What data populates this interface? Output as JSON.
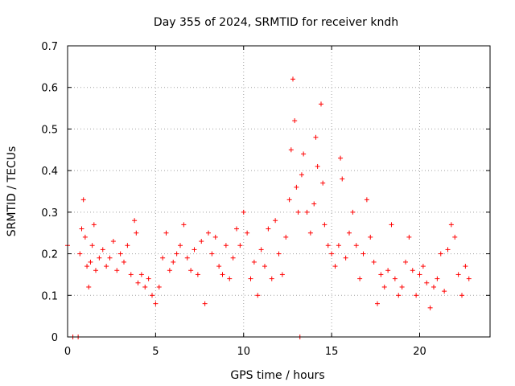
{
  "chart_data": {
    "type": "scatter",
    "title": "Day 355 of 2024, SRMTID for receiver kndh",
    "xlabel": "GPS time / hours",
    "ylabel": "SRMTID / TECUs",
    "xlim": [
      0,
      24
    ],
    "ylim": [
      0,
      0.7
    ],
    "xticks": [
      0,
      5,
      10,
      15,
      20
    ],
    "yticks": [
      0,
      0.1,
      0.2,
      0.3,
      0.4,
      0.5,
      0.6,
      0.7
    ],
    "xtick_labels": [
      "0",
      "5",
      "10",
      "15",
      "20"
    ],
    "ytick_labels": [
      "0",
      "0.1",
      "0.2",
      "0.3",
      "0.4",
      "0.5",
      "0.6",
      "0.7"
    ],
    "grid": true,
    "marker": "plus",
    "color": "#ff0000",
    "series": [
      {
        "name": "SRMTID",
        "points": [
          [
            0.0,
            0.22
          ],
          [
            0.3,
            0.0
          ],
          [
            0.6,
            0.0
          ],
          [
            0.7,
            0.2
          ],
          [
            0.8,
            0.26
          ],
          [
            0.9,
            0.33
          ],
          [
            1.0,
            0.24
          ],
          [
            1.1,
            0.17
          ],
          [
            1.2,
            0.12
          ],
          [
            1.3,
            0.18
          ],
          [
            1.4,
            0.22
          ],
          [
            1.5,
            0.27
          ],
          [
            1.6,
            0.16
          ],
          [
            1.8,
            0.19
          ],
          [
            2.0,
            0.21
          ],
          [
            2.2,
            0.17
          ],
          [
            2.4,
            0.19
          ],
          [
            2.6,
            0.23
          ],
          [
            2.8,
            0.16
          ],
          [
            3.0,
            0.2
          ],
          [
            3.2,
            0.18
          ],
          [
            3.4,
            0.22
          ],
          [
            3.6,
            0.15
          ],
          [
            3.8,
            0.28
          ],
          [
            3.9,
            0.25
          ],
          [
            4.0,
            0.13
          ],
          [
            4.2,
            0.15
          ],
          [
            4.4,
            0.12
          ],
          [
            4.6,
            0.14
          ],
          [
            4.8,
            0.1
          ],
          [
            5.0,
            0.08
          ],
          [
            5.2,
            0.12
          ],
          [
            5.4,
            0.19
          ],
          [
            5.6,
            0.25
          ],
          [
            5.8,
            0.16
          ],
          [
            6.0,
            0.18
          ],
          [
            6.2,
            0.2
          ],
          [
            6.4,
            0.22
          ],
          [
            6.6,
            0.27
          ],
          [
            6.8,
            0.19
          ],
          [
            7.0,
            0.16
          ],
          [
            7.2,
            0.21
          ],
          [
            7.4,
            0.15
          ],
          [
            7.6,
            0.23
          ],
          [
            7.8,
            0.08
          ],
          [
            8.0,
            0.25
          ],
          [
            8.2,
            0.2
          ],
          [
            8.4,
            0.24
          ],
          [
            8.6,
            0.17
          ],
          [
            8.8,
            0.15
          ],
          [
            9.0,
            0.22
          ],
          [
            9.2,
            0.14
          ],
          [
            9.4,
            0.19
          ],
          [
            9.6,
            0.26
          ],
          [
            9.8,
            0.22
          ],
          [
            10.0,
            0.3
          ],
          [
            10.2,
            0.25
          ],
          [
            10.4,
            0.14
          ],
          [
            10.6,
            0.18
          ],
          [
            10.8,
            0.1
          ],
          [
            11.0,
            0.21
          ],
          [
            11.2,
            0.17
          ],
          [
            11.4,
            0.26
          ],
          [
            11.6,
            0.14
          ],
          [
            11.8,
            0.28
          ],
          [
            12.0,
            0.2
          ],
          [
            12.2,
            0.15
          ],
          [
            12.4,
            0.24
          ],
          [
            12.6,
            0.33
          ],
          [
            12.7,
            0.45
          ],
          [
            12.8,
            0.62
          ],
          [
            12.9,
            0.52
          ],
          [
            13.0,
            0.36
          ],
          [
            13.1,
            0.3
          ],
          [
            13.2,
            0.0
          ],
          [
            13.3,
            0.39
          ],
          [
            13.4,
            0.44
          ],
          [
            13.6,
            0.3
          ],
          [
            13.8,
            0.25
          ],
          [
            14.0,
            0.32
          ],
          [
            14.1,
            0.48
          ],
          [
            14.2,
            0.41
          ],
          [
            14.4,
            0.56
          ],
          [
            14.5,
            0.37
          ],
          [
            14.6,
            0.27
          ],
          [
            14.8,
            0.22
          ],
          [
            15.0,
            0.2
          ],
          [
            15.2,
            0.17
          ],
          [
            15.4,
            0.22
          ],
          [
            15.5,
            0.43
          ],
          [
            15.6,
            0.38
          ],
          [
            15.8,
            0.19
          ],
          [
            16.0,
            0.25
          ],
          [
            16.2,
            0.3
          ],
          [
            16.4,
            0.22
          ],
          [
            16.6,
            0.14
          ],
          [
            16.8,
            0.2
          ],
          [
            17.0,
            0.33
          ],
          [
            17.2,
            0.24
          ],
          [
            17.4,
            0.18
          ],
          [
            17.6,
            0.08
          ],
          [
            17.8,
            0.15
          ],
          [
            18.0,
            0.12
          ],
          [
            18.2,
            0.16
          ],
          [
            18.4,
            0.27
          ],
          [
            18.6,
            0.14
          ],
          [
            18.8,
            0.1
          ],
          [
            19.0,
            0.12
          ],
          [
            19.2,
            0.18
          ],
          [
            19.4,
            0.24
          ],
          [
            19.6,
            0.16
          ],
          [
            19.8,
            0.1
          ],
          [
            20.0,
            0.15
          ],
          [
            20.2,
            0.17
          ],
          [
            20.4,
            0.13
          ],
          [
            20.6,
            0.07
          ],
          [
            20.8,
            0.12
          ],
          [
            21.0,
            0.14
          ],
          [
            21.2,
            0.2
          ],
          [
            21.4,
            0.11
          ],
          [
            21.6,
            0.21
          ],
          [
            21.8,
            0.27
          ],
          [
            22.0,
            0.24
          ],
          [
            22.2,
            0.15
          ],
          [
            22.4,
            0.1
          ],
          [
            22.6,
            0.17
          ],
          [
            22.8,
            0.14
          ]
        ]
      }
    ]
  }
}
